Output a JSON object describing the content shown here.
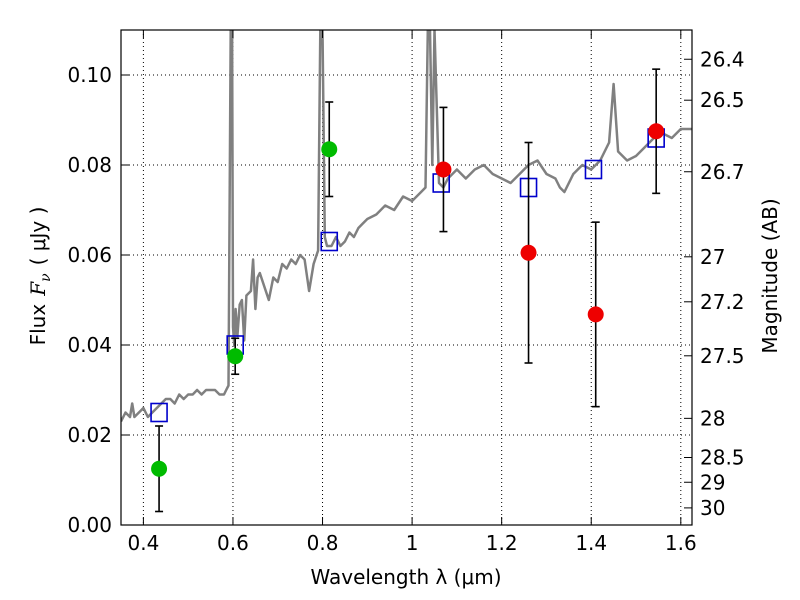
{
  "chart_data": {
    "type": "scatter",
    "xlabel": "Wavelength  λ (μm)",
    "ylabel_parts": {
      "prefix": "Flux",
      "symbol": "F",
      "subscript": "ν",
      "unit": "( μJy )"
    },
    "ylabel_right": "Magnitude (AB)",
    "xlim": [
      0.35,
      1.625
    ],
    "ylim": [
      0.0,
      0.11
    ],
    "x_ticks": [
      0.4,
      0.6,
      0.8,
      1.0,
      1.2,
      1.4,
      1.6
    ],
    "x_tick_labels": [
      "0.4",
      "0.6",
      "0.8",
      "1",
      "1.2",
      "1.4",
      "1.6"
    ],
    "y_ticks": [
      0.0,
      0.02,
      0.04,
      0.06,
      0.08,
      0.1
    ],
    "y_tick_labels": [
      "0.00",
      "0.02",
      "0.04",
      "0.06",
      "0.08",
      "0.10"
    ],
    "right_ticks": [
      {
        "label": "26.4",
        "flux": 0.1035
      },
      {
        "label": "26.5",
        "flux": 0.0944
      },
      {
        "label": "26.7",
        "flux": 0.0785
      },
      {
        "label": "27",
        "flux": 0.0596
      },
      {
        "label": "27.2",
        "flux": 0.0496
      },
      {
        "label": "27.5",
        "flux": 0.0376
      },
      {
        "label": "28",
        "flux": 0.0237
      },
      {
        "label": "28.5",
        "flux": 0.015
      },
      {
        "label": "29",
        "flux": 0.0095
      },
      {
        "label": "30",
        "flux": 0.0038
      }
    ],
    "grid": true,
    "series": [
      {
        "kind": "spectrum",
        "color": "#808080",
        "x": [
          0.35,
          0.36,
          0.37,
          0.375,
          0.38,
          0.39,
          0.4,
          0.41,
          0.42,
          0.43,
          0.44,
          0.45,
          0.46,
          0.47,
          0.48,
          0.49,
          0.5,
          0.51,
          0.52,
          0.53,
          0.54,
          0.55,
          0.56,
          0.57,
          0.58,
          0.585,
          0.59,
          0.595,
          0.598,
          0.6,
          0.603,
          0.606,
          0.61,
          0.615,
          0.62,
          0.625,
          0.63,
          0.64,
          0.645,
          0.65,
          0.655,
          0.66,
          0.67,
          0.68,
          0.69,
          0.7,
          0.71,
          0.72,
          0.73,
          0.74,
          0.75,
          0.76,
          0.77,
          0.78,
          0.79,
          0.795,
          0.8,
          0.805,
          0.81,
          0.82,
          0.83,
          0.84,
          0.85,
          0.86,
          0.87,
          0.88,
          0.89,
          0.9,
          0.92,
          0.94,
          0.96,
          0.98,
          1.0,
          1.02,
          1.03,
          1.035,
          1.04,
          1.045,
          1.05,
          1.06,
          1.07,
          1.08,
          1.09,
          1.1,
          1.12,
          1.14,
          1.16,
          1.18,
          1.2,
          1.22,
          1.24,
          1.26,
          1.28,
          1.3,
          1.32,
          1.33,
          1.34,
          1.36,
          1.38,
          1.4,
          1.42,
          1.44,
          1.45,
          1.46,
          1.48,
          1.5,
          1.52,
          1.54,
          1.56,
          1.58,
          1.6,
          1.625
        ],
        "y": [
          0.023,
          0.025,
          0.024,
          0.027,
          0.024,
          0.025,
          0.026,
          0.024,
          0.025,
          0.026,
          0.027,
          0.028,
          0.028,
          0.027,
          0.029,
          0.028,
          0.029,
          0.029,
          0.03,
          0.029,
          0.03,
          0.03,
          0.03,
          0.029,
          0.029,
          0.03,
          0.031,
          0.11,
          0.11,
          0.044,
          0.04,
          0.048,
          0.042,
          0.049,
          0.05,
          0.041,
          0.051,
          0.052,
          0.059,
          0.048,
          0.055,
          0.056,
          0.053,
          0.05,
          0.055,
          0.054,
          0.058,
          0.057,
          0.059,
          0.058,
          0.06,
          0.059,
          0.052,
          0.058,
          0.061,
          0.11,
          0.11,
          0.064,
          0.062,
          0.062,
          0.064,
          0.062,
          0.063,
          0.065,
          0.064,
          0.066,
          0.067,
          0.068,
          0.069,
          0.071,
          0.07,
          0.073,
          0.072,
          0.074,
          0.075,
          0.11,
          0.11,
          0.08,
          0.11,
          0.076,
          0.075,
          0.077,
          0.078,
          0.079,
          0.077,
          0.079,
          0.08,
          0.078,
          0.077,
          0.076,
          0.078,
          0.08,
          0.081,
          0.078,
          0.077,
          0.075,
          0.074,
          0.078,
          0.08,
          0.079,
          0.081,
          0.085,
          0.098,
          0.083,
          0.081,
          0.082,
          0.084,
          0.086,
          0.087,
          0.086,
          0.088,
          0.088
        ]
      },
      {
        "kind": "model_boxes",
        "color": "#0000cc",
        "x": [
          0.435,
          0.605,
          0.815,
          1.065,
          1.26,
          1.405,
          1.545
        ],
        "y": [
          0.025,
          0.04,
          0.063,
          0.076,
          0.075,
          0.079,
          0.086
        ]
      },
      {
        "kind": "photometry",
        "color": "#00bb00",
        "x": [
          0.435,
          0.605,
          0.815
        ],
        "y": [
          0.0125,
          0.0375,
          0.0835
        ],
        "yerr": [
          0.0095,
          0.004,
          0.0105
        ]
      },
      {
        "kind": "photometry",
        "color": "#ee0000",
        "x": [
          1.07,
          1.26,
          1.41,
          1.545
        ],
        "y": [
          0.079,
          0.0605,
          0.0468,
          0.0875
        ],
        "yerr": [
          0.0138,
          0.0245,
          0.0205,
          0.0138
        ]
      }
    ]
  }
}
